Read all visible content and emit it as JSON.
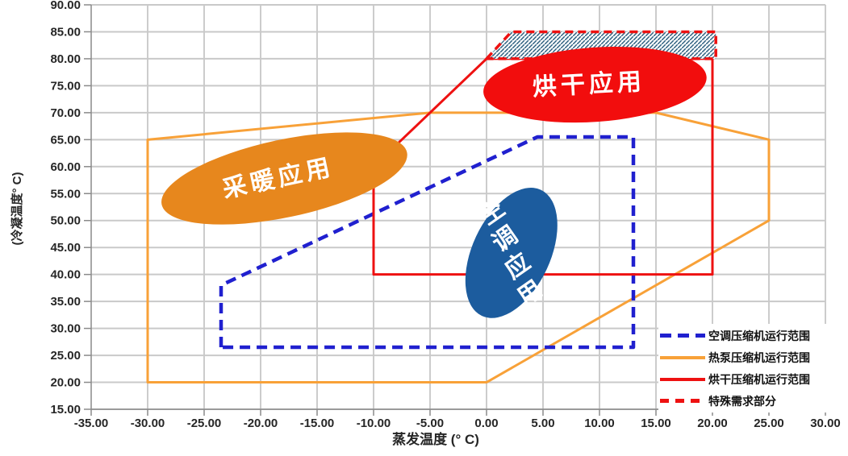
{
  "chart_data": {
    "type": "line",
    "title": "",
    "x_axis": {
      "title": "蒸发温度 (° C)",
      "min": -35,
      "max": 30,
      "step": 5,
      "tick_labels": [
        "-35.00",
        "-30.00",
        "-25.00",
        "-20.00",
        "-15.00",
        "-10.00",
        "-5.00",
        "0.00",
        "5.00",
        "10.00",
        "15.00",
        "20.00",
        "25.00",
        "30.00"
      ]
    },
    "y_axis": {
      "title": "(冷凝温度° C)",
      "min": 15,
      "max": 90,
      "step": 5,
      "tick_labels": [
        "15.00",
        "20.00",
        "25.00",
        "30.00",
        "35.00",
        "40.00",
        "45.00",
        "50.00",
        "55.00",
        "60.00",
        "65.00",
        "70.00",
        "75.00",
        "80.00",
        "85.00",
        "90.00"
      ]
    },
    "grid": true,
    "series": [
      {
        "name": "热泵压缩机运行范围",
        "color": "#f8a138",
        "style": "solid",
        "stroke_width": 3,
        "points": [
          [
            -30,
            65
          ],
          [
            -5,
            70
          ],
          [
            15,
            70
          ],
          [
            25,
            65
          ],
          [
            25,
            50
          ],
          [
            0,
            20
          ],
          [
            -30,
            20
          ]
        ],
        "closed": true
      },
      {
        "name": "空调压缩机运行范围",
        "color": "#2020cf",
        "style": "dashed",
        "dash": "13 8",
        "stroke_width": 4.5,
        "points": [
          [
            -23.5,
            26.5
          ],
          [
            -23.5,
            38
          ],
          [
            4.5,
            65.5
          ],
          [
            13,
            65.5
          ],
          [
            13,
            26.5
          ]
        ],
        "closed": true
      },
      {
        "name": "烘干压缩机运行范围",
        "color": "#ee1111",
        "style": "solid",
        "stroke_width": 3,
        "points": [
          [
            -10,
            40
          ],
          [
            -10,
            60
          ],
          [
            0,
            80
          ],
          [
            20,
            80
          ],
          [
            20,
            40
          ]
        ],
        "closed": true
      },
      {
        "name": "特殊需求部分",
        "color": "#ee1111",
        "style": "dashed",
        "dash": "10 6",
        "stroke_width": 3.5,
        "hatch": true,
        "points": [
          [
            0,
            80
          ],
          [
            2.2,
            85
          ],
          [
            20.3,
            85
          ],
          [
            20.3,
            80
          ]
        ],
        "closed": true
      }
    ],
    "hatch_color": "#2e6080",
    "regions": [
      {
        "label": "采暖应用",
        "fill": "#e7871d",
        "center": [
          -17.9,
          57.8
        ],
        "semi_axes": [
          11.1,
          7.2
        ],
        "rotate": -12,
        "text_rotate": -12,
        "text_layout": "horizontal",
        "font_size": 30,
        "letter_spacing": 5
      },
      {
        "label": "烘干应用",
        "fill": "#f20d0d",
        "center": [
          9.6,
          75.2
        ],
        "semi_axes": [
          9.9,
          6.9
        ],
        "rotate": -4,
        "text_rotate": -3,
        "text_layout": "horizontal",
        "font_size": 30,
        "letter_spacing": 5
      },
      {
        "label": "空调应用",
        "fill": "#1c5c9e",
        "center": [
          2.2,
          44.0
        ],
        "semi_axes": [
          3.45,
          12.9
        ],
        "rotate": 25,
        "text_rotate": -35,
        "text_layout": "vertical",
        "font_size": 30,
        "char_spacing_px": 37
      }
    ],
    "legend": {
      "position": "inside-bottom-right",
      "items": [
        {
          "label": "空调压缩机运行范围",
          "color": "#2020cf",
          "style": "dashed"
        },
        {
          "label": "热泵压缩机运行范围",
          "color": "#f8a138",
          "style": "solid"
        },
        {
          "label": "烘干压缩机运行范围",
          "color": "#ee1111",
          "style": "solid"
        },
        {
          "label": "特殊需求部分",
          "color": "#ee1111",
          "style": "dashed-short"
        }
      ]
    }
  },
  "colors": {
    "background": "#ffffff",
    "grid_horizontal": "#c9c9c9",
    "grid_vertical": "#9a9a9a",
    "axis": "#8a8a8a",
    "tick_text": "#262626",
    "ellipse_text": "#ffffff"
  }
}
